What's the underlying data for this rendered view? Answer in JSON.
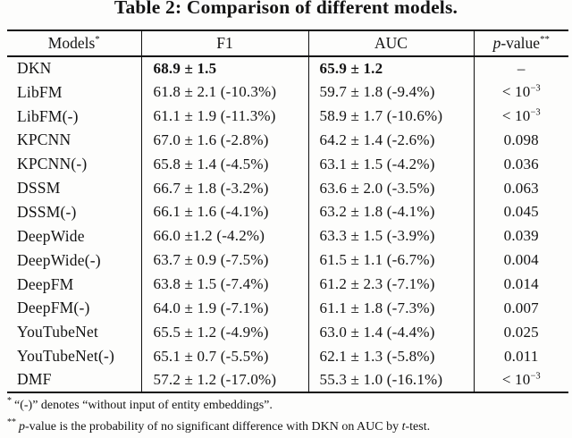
{
  "title": "Table 2: Comparison of different models.",
  "table": {
    "columns": {
      "models": {
        "label": "Models",
        "sup": "*"
      },
      "f1": {
        "label": "F1"
      },
      "auc": {
        "label": "AUC"
      },
      "pvalue": {
        "label_italic": "p",
        "label_rest": "-value",
        "sup": "**"
      }
    },
    "rows": [
      {
        "model": "DKN",
        "f1": "68.9 ± 1.5",
        "auc": "65.9 ± 1.2",
        "p": "–",
        "p_sup": "",
        "bold": true
      },
      {
        "model": "LibFM",
        "f1": "61.8 ± 2.1 (-10.3%)",
        "auc": "59.7 ± 1.8 (-9.4%)",
        "p": "< 10",
        "p_sup": "−3",
        "bold": false
      },
      {
        "model": "LibFM(-)",
        "f1": "61.1 ± 1.9 (-11.3%)",
        "auc": "58.9 ± 1.7 (-10.6%)",
        "p": "< 10",
        "p_sup": "−3",
        "bold": false
      },
      {
        "model": "KPCNN",
        "f1": "67.0 ± 1.6 (-2.8%)",
        "auc": "64.2 ± 1.4 (-2.6%)",
        "p": "0.098",
        "p_sup": "",
        "bold": false
      },
      {
        "model": "KPCNN(-)",
        "f1": "65.8 ± 1.4 (-4.5%)",
        "auc": "63.1 ± 1.5 (-4.2%)",
        "p": "0.036",
        "p_sup": "",
        "bold": false
      },
      {
        "model": "DSSM",
        "f1": "66.7 ± 1.8 (-3.2%)",
        "auc": "63.6 ± 2.0 (-3.5%)",
        "p": "0.063",
        "p_sup": "",
        "bold": false
      },
      {
        "model": "DSSM(-)",
        "f1": "66.1 ± 1.6 (-4.1%)",
        "auc": "63.2 ± 1.8 (-4.1%)",
        "p": "0.045",
        "p_sup": "",
        "bold": false
      },
      {
        "model": "DeepWide",
        "f1": "66.0 ±1.2 (-4.2%)",
        "auc": "63.3 ± 1.5 (-3.9%)",
        "p": "0.039",
        "p_sup": "",
        "bold": false
      },
      {
        "model": "DeepWide(-)",
        "f1": "63.7 ± 0.9 (-7.5%)",
        "auc": "61.5 ± 1.1 (-6.7%)",
        "p": "0.004",
        "p_sup": "",
        "bold": false
      },
      {
        "model": "DeepFM",
        "f1": "63.8 ± 1.5 (-7.4%)",
        "auc": "61.2 ± 2.3 (-7.1%)",
        "p": "0.014",
        "p_sup": "",
        "bold": false
      },
      {
        "model": "DeepFM(-)",
        "f1": "64.0 ± 1.9 (-7.1%)",
        "auc": "61.1 ± 1.8 (-7.3%)",
        "p": "0.007",
        "p_sup": "",
        "bold": false
      },
      {
        "model": "YouTubeNet",
        "f1": "65.5 ± 1.2 (-4.9%)",
        "auc": "63.0 ± 1.4 (-4.4%)",
        "p": "0.025",
        "p_sup": "",
        "bold": false
      },
      {
        "model": "YouTubeNet(-)",
        "f1": "65.1 ± 0.7 (-5.5%)",
        "auc": "62.1 ± 1.3 (-5.8%)",
        "p": "0.011",
        "p_sup": "",
        "bold": false
      },
      {
        "model": "DMF",
        "f1": "57.2 ± 1.2 (-17.0%)",
        "auc": "55.3 ± 1.0 (-16.1%)",
        "p": "< 10",
        "p_sup": "−3",
        "bold": false
      }
    ]
  },
  "footnotes": [
    {
      "marker": "*",
      "segments": [
        {
          "text": "“(-)” denotes “without input of entity embeddings”.",
          "italic": false
        }
      ]
    },
    {
      "marker": "**",
      "segments": [
        {
          "text": "p",
          "italic": true
        },
        {
          "text": "-value is the probability of no significant difference with DKN on AUC by ",
          "italic": false
        },
        {
          "text": "t",
          "italic": true
        },
        {
          "text": "-test.",
          "italic": false
        }
      ]
    }
  ]
}
